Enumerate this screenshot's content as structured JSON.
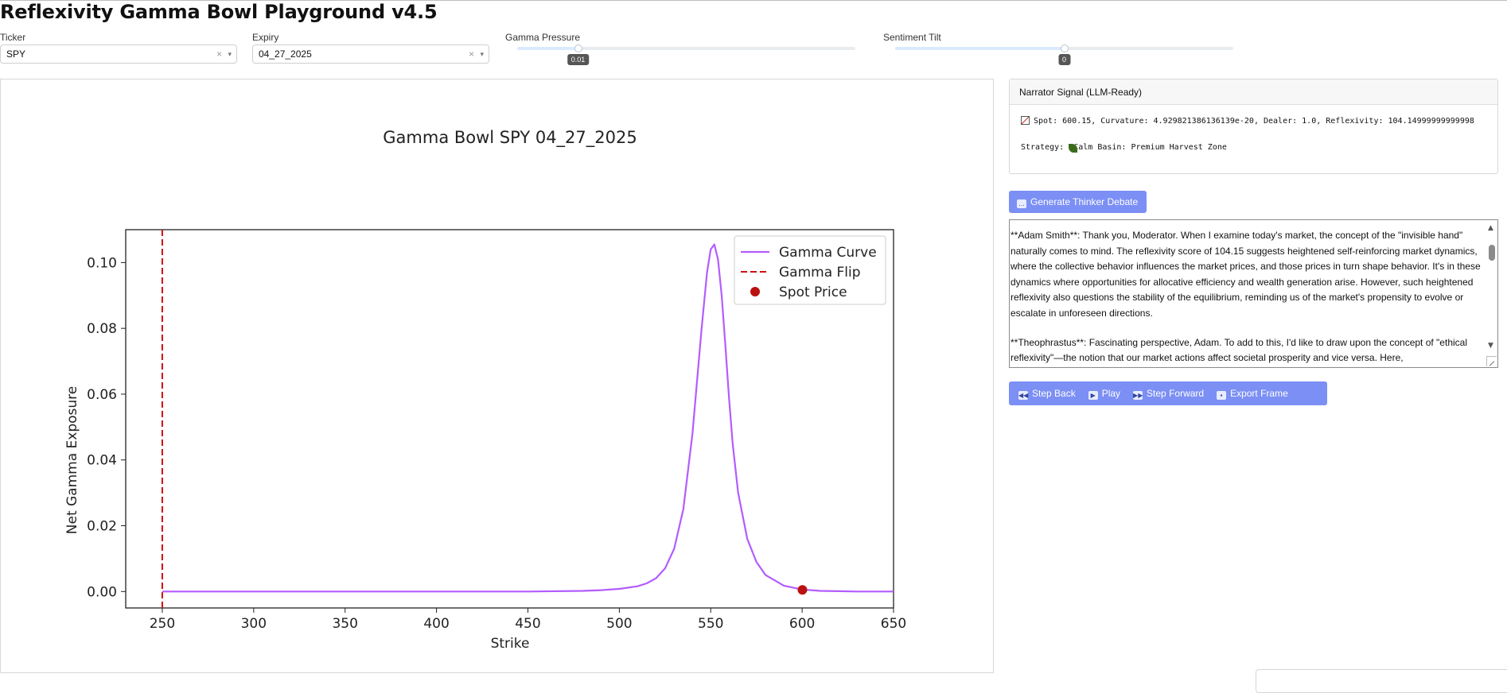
{
  "app": {
    "title": "Reflexivity Gamma Bowl Playground v4.5"
  },
  "controls": {
    "ticker": {
      "label": "Ticker",
      "value": "SPY",
      "clear": "×",
      "caret": "▾"
    },
    "expiry": {
      "label": "Expiry",
      "value": "04_27_2025",
      "clear": "×",
      "caret": "▾"
    },
    "gamma_pressure": {
      "label": "Gamma Pressure",
      "value": "0.01",
      "fraction": 0.18
    },
    "sentiment_tilt": {
      "label": "Sentiment Tilt",
      "value": "0",
      "fraction": 0.5
    }
  },
  "narrator": {
    "header": "Narrator Signal (LLM-Ready)",
    "signal_line": "Spot: 600.15, Curvature: 4.929821386136139e-20, Dealer: 1.0, Reflexivity: 104.14999999999998",
    "strategy_line": "Strategy:  Calm Basin: Premium Harvest Zone"
  },
  "debate_button": {
    "label": "Generate Thinker Debate"
  },
  "debate": {
    "paragraphs": [
      "**Adam Smith**: Thank you, Moderator. When I examine today's market, the concept of the \"invisible hand\" naturally comes to mind. The reflexivity score of 104.15 suggests heightened self-reinforcing market dynamics, where the collective behavior influences the market prices, and those prices in turn shape behavior. It's in these dynamics where opportunities for allocative efficiency and wealth generation arise. However, such heightened reflexivity also questions the stability of the equilibrium, reminding us of the market's propensity to evolve or escalate in unforeseen directions.",
      "**Theophrastus**: Fascinating perspective, Adam. To add to this, I'd like to draw upon the concept of \"ethical reflexivity\"—the notion that our market actions affect societal prosperity and vice versa. Here,"
    ]
  },
  "playback": {
    "step_back": "Step Back",
    "play": "Play",
    "step_forward": "Step Forward",
    "export_frame": "Export Frame"
  },
  "colors": {
    "accent_button": "#7b8ff5",
    "gamma_curve": "#b35cff",
    "gamma_flip": "#cc1111",
    "spot": "#bb1111"
  },
  "chart_data": {
    "type": "line",
    "title": "Gamma Bowl SPY 04_27_2025",
    "xlabel": "Strike",
    "ylabel": "Net Gamma Exposure",
    "xlim": [
      230,
      650
    ],
    "ylim": [
      -0.005,
      0.11
    ],
    "xticks": [
      250,
      300,
      350,
      400,
      450,
      500,
      550,
      600,
      650
    ],
    "yticks": [
      "0.00",
      "0.02",
      "0.04",
      "0.06",
      "0.08",
      "0.10"
    ],
    "ytick_values": [
      0,
      0.02,
      0.04,
      0.06,
      0.08,
      0.1
    ],
    "legend_position": "top-right",
    "series": [
      {
        "name": "Gamma Curve",
        "style": "line",
        "color": "#b35cff",
        "x": [
          250,
          300,
          350,
          400,
          450,
          480,
          490,
          500,
          510,
          515,
          520,
          525,
          530,
          535,
          540,
          545,
          548,
          550,
          552,
          554,
          556,
          558,
          560,
          562,
          565,
          570,
          575,
          580,
          590,
          600,
          610,
          620,
          630,
          640,
          650
        ],
        "y": [
          0.0,
          0.0,
          0.0,
          0.0,
          0.0,
          0.0002,
          0.0004,
          0.0008,
          0.0016,
          0.0025,
          0.004,
          0.007,
          0.013,
          0.025,
          0.048,
          0.08,
          0.097,
          0.104,
          0.1055,
          0.101,
          0.09,
          0.075,
          0.059,
          0.045,
          0.03,
          0.016,
          0.009,
          0.005,
          0.0018,
          0.0006,
          0.0002,
          0.0001,
          0.0,
          0.0,
          0.0
        ]
      },
      {
        "name": "Gamma Flip",
        "style": "dashed-vline",
        "color": "#cc1111",
        "x": 250
      },
      {
        "name": "Spot Price",
        "style": "point",
        "color": "#bb1111",
        "x": 600.15,
        "y": 0.0005
      }
    ]
  }
}
